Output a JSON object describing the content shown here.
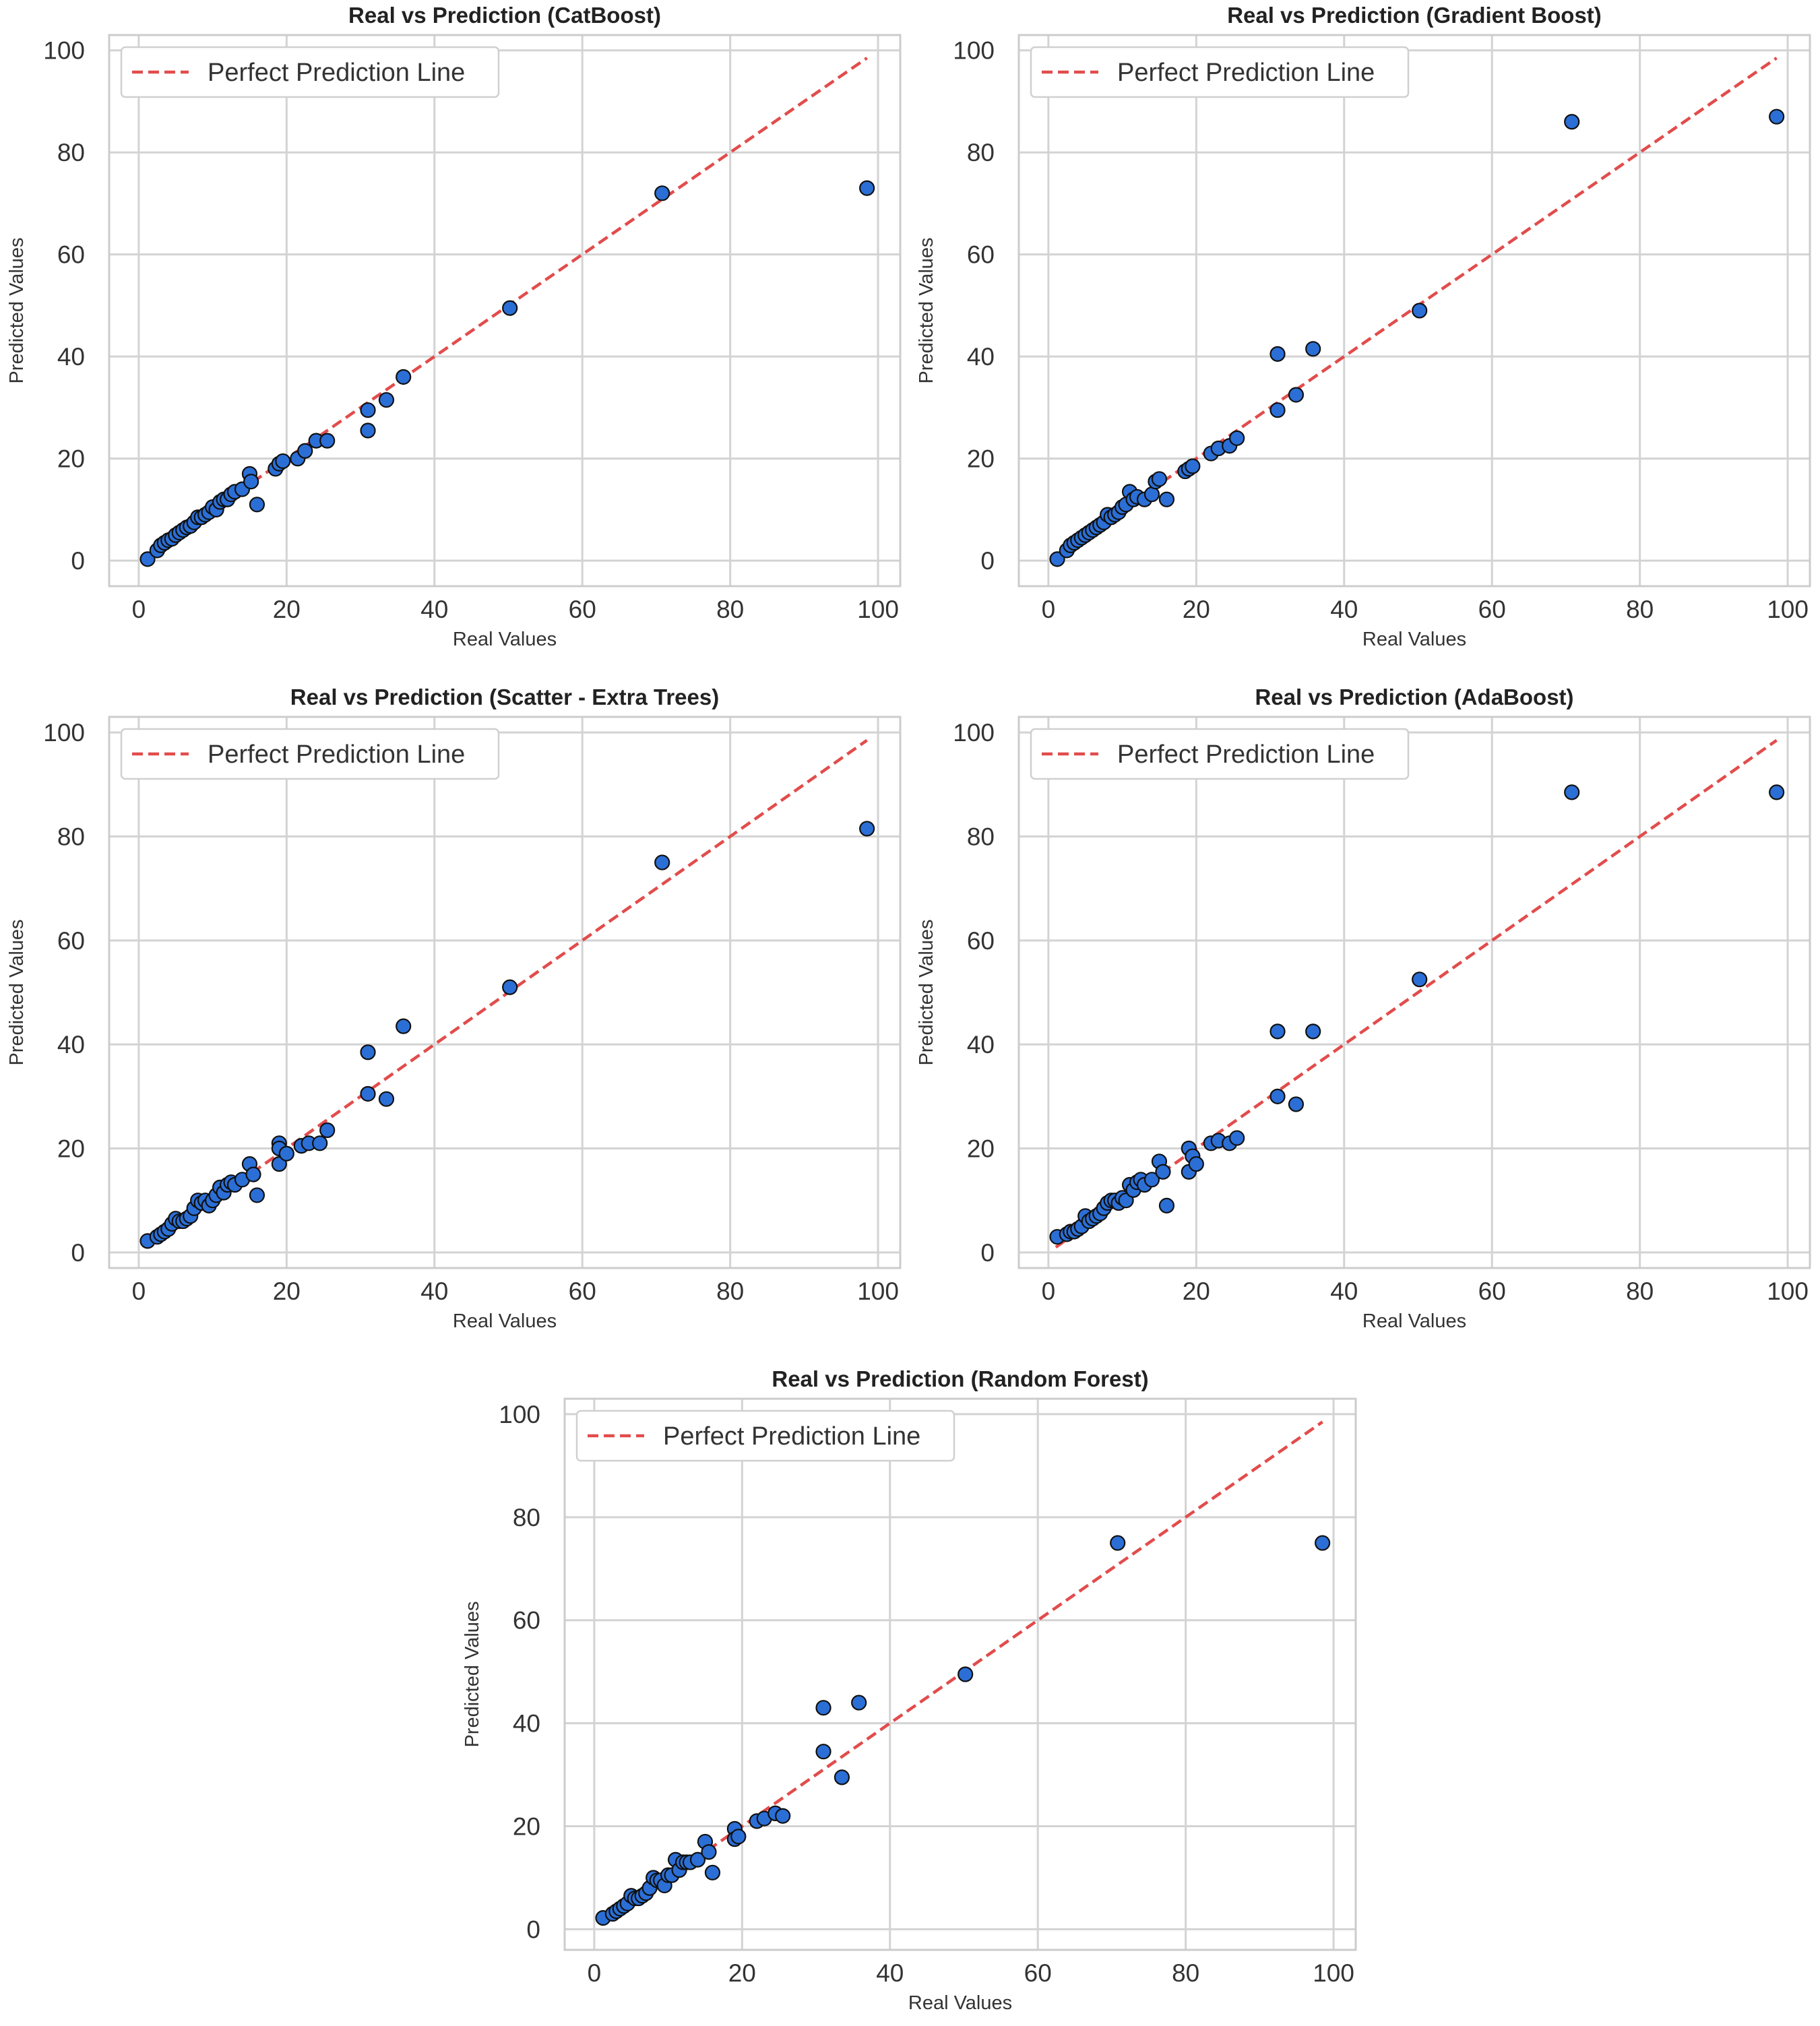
{
  "colors": {
    "background": "#ffffff",
    "grid": "#d3d3d3",
    "spine": "#cccccc",
    "point_fill": "#2b6fd6",
    "point_edge": "#101010",
    "perfect_line": "#e24c4c",
    "legend_border": "#d0d0d0"
  },
  "legend_label": "Perfect Prediction Line",
  "chart_data": [
    {
      "type": "scatter",
      "title": "Real vs Prediction (CatBoost)",
      "xlabel": "Real Values",
      "ylabel": "Predicted Values",
      "xlim": [
        -4,
        103
      ],
      "ylim": [
        -5,
        103
      ],
      "xticks": [
        0,
        20,
        40,
        60,
        80,
        100
      ],
      "yticks": [
        0,
        20,
        40,
        60,
        80,
        100
      ],
      "grid": true,
      "legend": "upper-left",
      "reference_line": {
        "name": "Perfect Prediction Line",
        "x": [
          1,
          98.5
        ],
        "y": [
          1,
          98.5
        ]
      },
      "points": [
        [
          1.2,
          0.3
        ],
        [
          2.5,
          2
        ],
        [
          3,
          3
        ],
        [
          3.5,
          3.5
        ],
        [
          4,
          4
        ],
        [
          4.5,
          4.3
        ],
        [
          5,
          5
        ],
        [
          5.5,
          5.5
        ],
        [
          6,
          6
        ],
        [
          6.5,
          6.5
        ],
        [
          7,
          6.8
        ],
        [
          7.5,
          7.5
        ],
        [
          8,
          8.5
        ],
        [
          8.5,
          8.5
        ],
        [
          9,
          9
        ],
        [
          9.5,
          9.5
        ],
        [
          10,
          10.5
        ],
        [
          10.5,
          10
        ],
        [
          11,
          11.5
        ],
        [
          11.5,
          12
        ],
        [
          12,
          12
        ],
        [
          12.5,
          13
        ],
        [
          13,
          13.5
        ],
        [
          14,
          14
        ],
        [
          15,
          17
        ],
        [
          15.2,
          15.5
        ],
        [
          16,
          11
        ],
        [
          18.5,
          18
        ],
        [
          19,
          19
        ],
        [
          19.5,
          19.5
        ],
        [
          21.5,
          20
        ],
        [
          22.5,
          21.5
        ],
        [
          24,
          23.5
        ],
        [
          25.5,
          23.5
        ],
        [
          31,
          29.5
        ],
        [
          31,
          25.5
        ],
        [
          33.5,
          31.5
        ],
        [
          35.8,
          36
        ],
        [
          50.2,
          49.5
        ],
        [
          70.8,
          72
        ],
        [
          98.5,
          73
        ]
      ]
    },
    {
      "type": "scatter",
      "title": "Real vs Prediction (Gradient Boost)",
      "xlabel": "Real Values",
      "ylabel": "Predicted Values",
      "xlim": [
        -4,
        103
      ],
      "ylim": [
        -5,
        103
      ],
      "xticks": [
        0,
        20,
        40,
        60,
        80,
        100
      ],
      "yticks": [
        0,
        20,
        40,
        60,
        80,
        100
      ],
      "grid": true,
      "legend": "upper-left",
      "reference_line": {
        "name": "Perfect Prediction Line",
        "x": [
          1,
          98.5
        ],
        "y": [
          1,
          98.5
        ]
      },
      "points": [
        [
          1.2,
          0.3
        ],
        [
          2.5,
          2
        ],
        [
          3,
          3
        ],
        [
          3.5,
          3.5
        ],
        [
          4,
          4
        ],
        [
          4.5,
          4.5
        ],
        [
          5,
          5
        ],
        [
          5.5,
          5.5
        ],
        [
          6,
          6
        ],
        [
          6.5,
          6.5
        ],
        [
          7,
          7
        ],
        [
          7.5,
          7.5
        ],
        [
          8,
          9
        ],
        [
          8.5,
          8.5
        ],
        [
          9,
          9
        ],
        [
          9.5,
          9.5
        ],
        [
          10,
          10.5
        ],
        [
          10.5,
          11
        ],
        [
          11,
          13.5
        ],
        [
          11.5,
          12
        ],
        [
          12,
          12.5
        ],
        [
          13,
          12
        ],
        [
          14,
          13
        ],
        [
          14.5,
          15.5
        ],
        [
          15,
          16
        ],
        [
          16,
          12
        ],
        [
          18.5,
          17.5
        ],
        [
          19,
          18
        ],
        [
          19.5,
          18.5
        ],
        [
          22,
          21
        ],
        [
          23,
          22
        ],
        [
          24.5,
          22.5
        ],
        [
          25.5,
          24
        ],
        [
          31,
          40.5
        ],
        [
          31,
          29.5
        ],
        [
          33.5,
          32.5
        ],
        [
          35.8,
          41.5
        ],
        [
          50.2,
          49
        ],
        [
          70.8,
          86
        ],
        [
          98.5,
          87
        ]
      ]
    },
    {
      "type": "scatter",
      "title": "Real vs Prediction (Scatter - Extra Trees)",
      "xlabel": "Real Values",
      "ylabel": "Predicted Values",
      "xlim": [
        -4,
        103
      ],
      "ylim": [
        -3,
        103
      ],
      "xticks": [
        0,
        20,
        40,
        60,
        80,
        100
      ],
      "yticks": [
        0,
        20,
        40,
        60,
        80,
        100
      ],
      "grid": true,
      "legend": "upper-left",
      "reference_line": {
        "name": "Perfect Prediction Line",
        "x": [
          1,
          98.5
        ],
        "y": [
          1,
          98.5
        ]
      },
      "points": [
        [
          1.2,
          2.2
        ],
        [
          2.5,
          3
        ],
        [
          3,
          3.5
        ],
        [
          3.5,
          4
        ],
        [
          4,
          4.5
        ],
        [
          4.5,
          5.5
        ],
        [
          5,
          6.5
        ],
        [
          5.5,
          6
        ],
        [
          6,
          6
        ],
        [
          6.5,
          6.5
        ],
        [
          7,
          7
        ],
        [
          7.5,
          8.5
        ],
        [
          8,
          10
        ],
        [
          8.5,
          9.5
        ],
        [
          9,
          10
        ],
        [
          9.5,
          9
        ],
        [
          10,
          10
        ],
        [
          10.5,
          11
        ],
        [
          11,
          12.5
        ],
        [
          11.5,
          11.5
        ],
        [
          12,
          13
        ],
        [
          12.5,
          13.5
        ],
        [
          13,
          13
        ],
        [
          14,
          14
        ],
        [
          15,
          17
        ],
        [
          15.5,
          15
        ],
        [
          16,
          11
        ],
        [
          19,
          21
        ],
        [
          19,
          20
        ],
        [
          19,
          17
        ],
        [
          20,
          19
        ],
        [
          22,
          20.5
        ],
        [
          23,
          21
        ],
        [
          24.5,
          21
        ],
        [
          25.5,
          23.5
        ],
        [
          31,
          38.5
        ],
        [
          31,
          30.5
        ],
        [
          33.5,
          29.5
        ],
        [
          35.8,
          43.5
        ],
        [
          50.2,
          51
        ],
        [
          70.8,
          75
        ],
        [
          98.5,
          81.5
        ]
      ]
    },
    {
      "type": "scatter",
      "title": "Real vs Prediction (AdaBoost)",
      "xlabel": "Real Values",
      "ylabel": "Predicted Values",
      "xlim": [
        -4,
        103
      ],
      "ylim": [
        -3,
        103
      ],
      "xticks": [
        0,
        20,
        40,
        60,
        80,
        100
      ],
      "yticks": [
        0,
        20,
        40,
        60,
        80,
        100
      ],
      "grid": true,
      "legend": "upper-left",
      "reference_line": {
        "name": "Perfect Prediction Line",
        "x": [
          1,
          98.5
        ],
        "y": [
          1,
          98.5
        ]
      },
      "points": [
        [
          1.2,
          3
        ],
        [
          2.5,
          3.5
        ],
        [
          3,
          4
        ],
        [
          3.5,
          4
        ],
        [
          4,
          4.5
        ],
        [
          4.5,
          5
        ],
        [
          5,
          7
        ],
        [
          5.5,
          6
        ],
        [
          6,
          6.5
        ],
        [
          6.5,
          7
        ],
        [
          7,
          7.5
        ],
        [
          7.5,
          8.5
        ],
        [
          8,
          9.5
        ],
        [
          8.5,
          10
        ],
        [
          9,
          10
        ],
        [
          9.5,
          9.5
        ],
        [
          10,
          10.5
        ],
        [
          10.5,
          10
        ],
        [
          11,
          13
        ],
        [
          11.5,
          12
        ],
        [
          12,
          13.5
        ],
        [
          12.5,
          14
        ],
        [
          13,
          13
        ],
        [
          14,
          14
        ],
        [
          15,
          17.5
        ],
        [
          15.5,
          15.5
        ],
        [
          16,
          9
        ],
        [
          19,
          20
        ],
        [
          19,
          15.5
        ],
        [
          19.5,
          18.5
        ],
        [
          20,
          17
        ],
        [
          22,
          21
        ],
        [
          23,
          21.5
        ],
        [
          24.5,
          21
        ],
        [
          25.5,
          22
        ],
        [
          31,
          42.5
        ],
        [
          31,
          30
        ],
        [
          33.5,
          28.5
        ],
        [
          35.8,
          42.5
        ],
        [
          50.2,
          52.5
        ],
        [
          70.8,
          88.5
        ],
        [
          98.5,
          88.5
        ]
      ]
    },
    {
      "type": "scatter",
      "title": "Real vs Prediction (Random Forest)",
      "xlabel": "Real Values",
      "ylabel": "Predicted Values",
      "xlim": [
        -4,
        103
      ],
      "ylim": [
        -4,
        103
      ],
      "xticks": [
        0,
        20,
        40,
        60,
        80,
        100
      ],
      "yticks": [
        0,
        20,
        40,
        60,
        80,
        100
      ],
      "grid": true,
      "legend": "upper-left",
      "reference_line": {
        "name": "Perfect Prediction Line",
        "x": [
          1,
          98.5
        ],
        "y": [
          1,
          98.5
        ]
      },
      "points": [
        [
          1.2,
          2.2
        ],
        [
          2.5,
          3
        ],
        [
          3,
          3.5
        ],
        [
          3.5,
          4
        ],
        [
          4,
          4.5
        ],
        [
          4.5,
          5
        ],
        [
          5,
          6.5
        ],
        [
          5.5,
          6
        ],
        [
          6,
          6
        ],
        [
          6.5,
          6.5
        ],
        [
          7,
          7
        ],
        [
          7.5,
          8
        ],
        [
          8,
          10
        ],
        [
          8.5,
          9.5
        ],
        [
          9,
          9.5
        ],
        [
          9.5,
          8.5
        ],
        [
          10,
          10.5
        ],
        [
          10.5,
          10.5
        ],
        [
          11,
          13.5
        ],
        [
          11.5,
          11.5
        ],
        [
          12,
          13
        ],
        [
          12.5,
          13
        ],
        [
          13,
          13
        ],
        [
          14,
          13.5
        ],
        [
          15,
          17
        ],
        [
          15.5,
          15
        ],
        [
          16,
          11
        ],
        [
          19,
          19.5
        ],
        [
          19,
          17.5
        ],
        [
          19.5,
          18
        ],
        [
          22,
          21
        ],
        [
          23,
          21.5
        ],
        [
          24.5,
          22.5
        ],
        [
          25.5,
          22
        ],
        [
          31,
          43
        ],
        [
          31,
          34.5
        ],
        [
          33.5,
          29.5
        ],
        [
          35.8,
          44
        ],
        [
          50.2,
          49.5
        ],
        [
          70.8,
          75
        ],
        [
          98.5,
          75
        ]
      ]
    }
  ]
}
